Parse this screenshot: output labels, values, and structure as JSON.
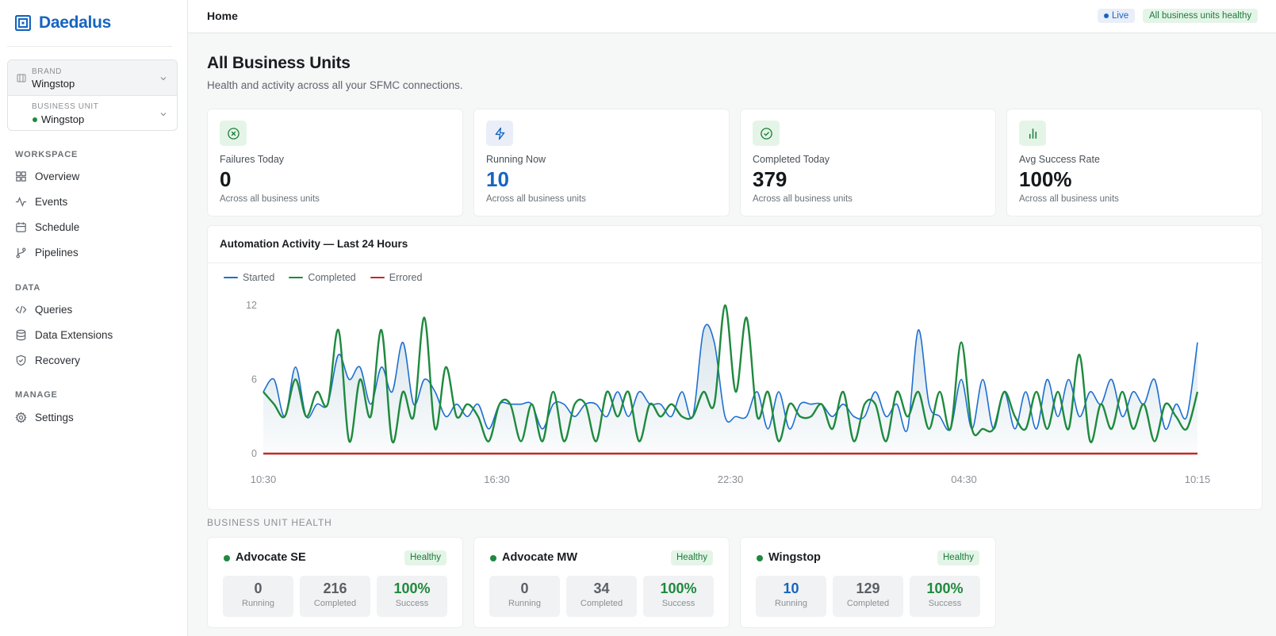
{
  "app": {
    "name": "Daedalus"
  },
  "picker": {
    "brand_caption": "BRAND",
    "brand_value": "Wingstop",
    "bu_caption": "BUSINESS UNIT",
    "bu_value": "Wingstop"
  },
  "nav": {
    "sections": [
      {
        "caption": "WORKSPACE",
        "items": [
          "Overview",
          "Events",
          "Schedule",
          "Pipelines"
        ]
      },
      {
        "caption": "DATA",
        "items": [
          "Queries",
          "Data Extensions",
          "Recovery"
        ]
      },
      {
        "caption": "MANAGE",
        "items": [
          "Settings"
        ]
      }
    ]
  },
  "topbar": {
    "title": "Home",
    "live_label": "Live",
    "health_label": "All business units healthy"
  },
  "page": {
    "title": "All Business Units",
    "subtitle": "Health and activity across all your SFMC connections."
  },
  "kpis": [
    {
      "label": "Failures Today",
      "value": "0",
      "foot": "Across all business units",
      "icon": "x-circle-icon",
      "value_color": "#15181b",
      "icon_bg": "#e4f5e8",
      "icon_color": "#1e7a3a"
    },
    {
      "label": "Running Now",
      "value": "10",
      "foot": "Across all business units",
      "icon": "lightning-icon",
      "value_color": "#1565c0",
      "icon_bg": "#e9eef8",
      "icon_color": "#1565c0"
    },
    {
      "label": "Completed Today",
      "value": "379",
      "foot": "Across all business units",
      "icon": "check-circle-icon",
      "value_color": "#15181b",
      "icon_bg": "#e4f5e8",
      "icon_color": "#1e7a3a"
    },
    {
      "label": "Avg Success Rate",
      "value": "100%",
      "foot": "Across all business units",
      "icon": "bar-chart-icon",
      "value_color": "#15181b",
      "icon_bg": "#e4f5e8",
      "icon_color": "#1e7a3a"
    }
  ],
  "chart_data": {
    "type": "line",
    "title": "Automation Activity — Last 24 Hours",
    "ylim": [
      0,
      12
    ],
    "yticks": [
      0,
      6,
      12
    ],
    "xticks": [
      "10:30",
      "16:30",
      "22:30",
      "04:30",
      "10:15"
    ],
    "grid": false,
    "legend": "top-left",
    "series": [
      {
        "name": "Started",
        "color": "#1e6fd0",
        "values": [
          5,
          6,
          3,
          7,
          3,
          4,
          4,
          8,
          6,
          7,
          4,
          7,
          5,
          9,
          4,
          6,
          5,
          3,
          4,
          3,
          4,
          2,
          4,
          4,
          4,
          4,
          2,
          4,
          4,
          3,
          4,
          4,
          3,
          5,
          3,
          5,
          4,
          4,
          3,
          5,
          3,
          10,
          9,
          3,
          3,
          3,
          5,
          2,
          5,
          2,
          4,
          4,
          4,
          3,
          4,
          3,
          3,
          5,
          3,
          4,
          2,
          10,
          4,
          3,
          2,
          6,
          2,
          6,
          2,
          5,
          2,
          5,
          2,
          6,
          3,
          6,
          3,
          5,
          4,
          6,
          3,
          5,
          4,
          6,
          2,
          4,
          3,
          9
        ]
      },
      {
        "name": "Completed",
        "color": "#1e8a3e",
        "values": [
          5,
          4,
          3,
          6,
          3,
          5,
          4,
          10,
          1,
          6,
          3,
          10,
          1,
          5,
          3,
          11,
          2,
          7,
          3,
          4,
          3,
          1,
          4,
          4,
          1,
          4,
          1,
          5,
          1,
          4,
          4,
          1,
          5,
          3,
          5,
          1,
          4,
          3,
          4,
          3,
          3,
          5,
          4,
          12,
          5,
          11,
          3,
          5,
          1,
          4,
          3,
          3,
          4,
          2,
          5,
          1,
          4,
          4,
          1,
          5,
          3,
          5,
          2,
          5,
          2,
          9,
          2,
          2,
          2,
          5,
          3,
          2,
          5,
          2,
          5,
          2,
          8,
          1,
          4,
          2,
          5,
          2,
          4,
          1,
          4,
          3,
          2,
          5
        ]
      },
      {
        "name": "Errored",
        "color": "#c62828",
        "values": [
          0,
          0,
          0,
          0,
          0,
          0,
          0,
          0,
          0,
          0,
          0,
          0,
          0,
          0,
          0,
          0,
          0,
          0,
          0,
          0,
          0,
          0,
          0,
          0,
          0,
          0,
          0,
          0,
          0,
          0,
          0,
          0,
          0,
          0,
          0,
          0,
          0,
          0,
          0,
          0,
          0,
          0,
          0,
          0,
          0,
          0,
          0,
          0,
          0,
          0,
          0,
          0,
          0,
          0,
          0,
          0,
          0,
          0,
          0,
          0,
          0,
          0,
          0,
          0,
          0,
          0,
          0,
          0,
          0,
          0,
          0,
          0,
          0,
          0,
          0,
          0,
          0,
          0,
          0,
          0,
          0,
          0,
          0,
          0,
          0,
          0,
          0,
          0
        ]
      }
    ]
  },
  "bu_section_label": "BUSINESS UNIT HEALTH",
  "business_units": [
    {
      "name": "Advocate SE",
      "status": "Healthy",
      "running": "0",
      "completed": "216",
      "success": "100%",
      "running_color": "#5a6066"
    },
    {
      "name": "Advocate MW",
      "status": "Healthy",
      "running": "0",
      "completed": "34",
      "success": "100%",
      "running_color": "#5a6066"
    },
    {
      "name": "Wingstop",
      "status": "Healthy",
      "running": "10",
      "completed": "129",
      "success": "100%",
      "running_color": "#1565c0"
    }
  ],
  "bu_stat_captions": {
    "running": "Running",
    "completed": "Completed",
    "success": "Success"
  },
  "colors": {
    "accent": "#1565c0",
    "success": "#1e7a3a",
    "success_value": "#1e8a3e"
  }
}
